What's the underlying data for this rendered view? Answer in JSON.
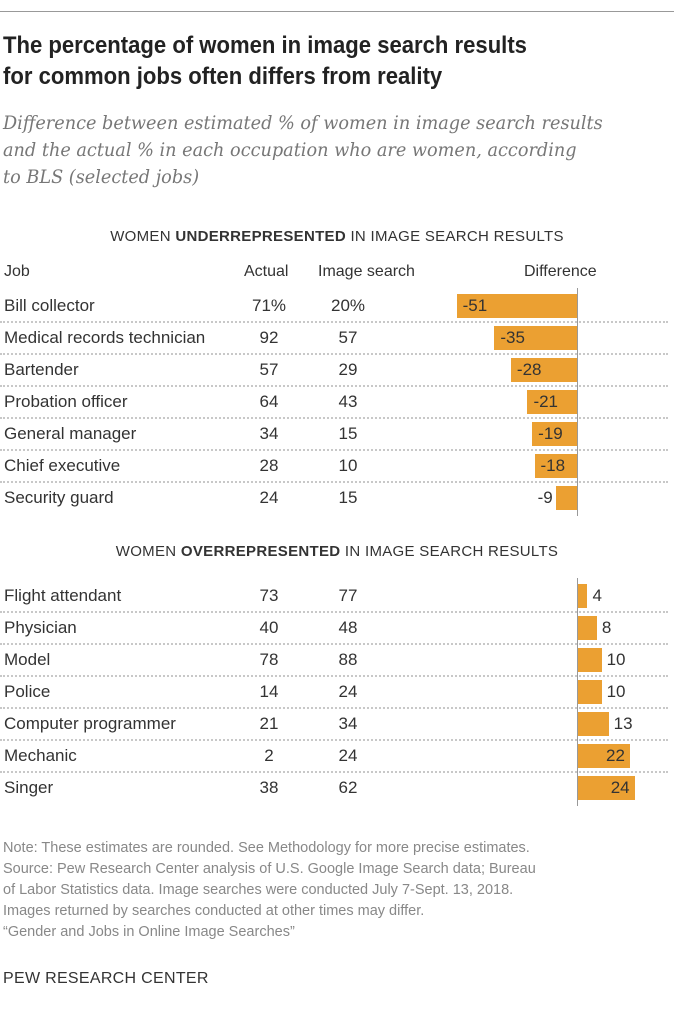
{
  "title": "The percentage of women in image search results for common jobs often differs from reality",
  "title_lines": [
    "The percentage of women in image search results",
    "for common jobs often differs from reality"
  ],
  "subtitle_lines": [
    "Difference between estimated % of women in image search results",
    "and the actual % in each occupation who are women, according",
    "to BLS (selected jobs)"
  ],
  "chart_data": {
    "type": "bar",
    "orientation": "horizontal",
    "columns": [
      "Job",
      "Actual",
      "Image search",
      "Difference"
    ],
    "bar_color": "#EBA032",
    "groups": [
      {
        "prefix": "WOMEN ",
        "emph": "UNDERREPRESENTED",
        "suffix": " IN IMAGE SEARCH RESULTS",
        "rows": [
          {
            "job": "Bill collector",
            "actual": "71%",
            "image": "20%",
            "diff": -51
          },
          {
            "job": "Medical records technician",
            "actual": "92",
            "image": "57",
            "diff": -35
          },
          {
            "job": "Bartender",
            "actual": "57",
            "image": "29",
            "diff": -28
          },
          {
            "job": "Probation officer",
            "actual": "64",
            "image": "43",
            "diff": -21
          },
          {
            "job": "General manager",
            "actual": "34",
            "image": "15",
            "diff": -19
          },
          {
            "job": "Chief executive",
            "actual": "28",
            "image": "10",
            "diff": -18
          },
          {
            "job": "Security guard",
            "actual": "24",
            "image": "15",
            "diff": -9
          }
        ]
      },
      {
        "prefix": "WOMEN ",
        "emph": "OVERREPRESENTED",
        "suffix": " IN IMAGE SEARCH RESULTS",
        "rows": [
          {
            "job": "Flight attendant",
            "actual": "73",
            "image": "77",
            "diff": 4
          },
          {
            "job": "Physician",
            "actual": "40",
            "image": "48",
            "diff": 8
          },
          {
            "job": "Model",
            "actual": "78",
            "image": "88",
            "diff": 10
          },
          {
            "job": "Police",
            "actual": "14",
            "image": "24",
            "diff": 10
          },
          {
            "job": "Computer programmer",
            "actual": "21",
            "image": "34",
            "diff": 13
          },
          {
            "job": "Mechanic",
            "actual": "2",
            "image": "24",
            "diff": 22
          },
          {
            "job": "Singer",
            "actual": "38",
            "image": "62",
            "diff": 24
          }
        ]
      }
    ]
  },
  "notes": [
    "Note: These estimates are rounded. See Methodology for more precise estimates.",
    "Source: Pew Research Center analysis of U.S. Google Image Search data; Bureau",
    "of Labor Statistics data. Image searches were conducted July 7-Sept. 13, 2018.",
    "Images returned by searches conducted at other times may differ.",
    "“Gender and Jobs in Online Image Searches”"
  ],
  "brand": "PEW RESEARCH CENTER"
}
